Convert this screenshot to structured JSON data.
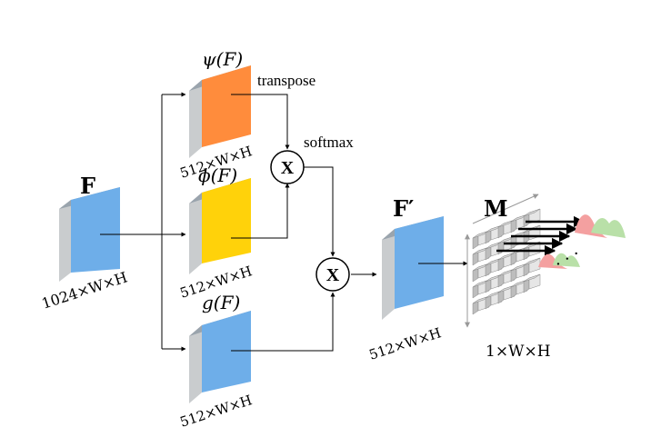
{
  "diagram": {
    "input_block": {
      "label": "F",
      "dims": "1024×W×H",
      "color": "#6eaee9"
    },
    "psi_block": {
      "label": "ψ(F)",
      "dims": "512×W×H",
      "color": "#ff8c3c"
    },
    "phi_block": {
      "label": "ϕ(F)",
      "dims": "512×W×H",
      "color": "#ffd20a"
    },
    "g_block": {
      "label": "g(F)",
      "dims": "512×W×H",
      "color": "#6eaee9"
    },
    "output_block": {
      "label": "F′",
      "dims": "512×W×H",
      "color": "#6eaee9"
    },
    "memory": {
      "label": "M",
      "dims": "1×W×H"
    },
    "ops": {
      "multiply_1": "X",
      "multiply_2": "X",
      "transpose_label": "transpose",
      "softmax_label": "softmax"
    },
    "ellipsis": "· · ·"
  }
}
